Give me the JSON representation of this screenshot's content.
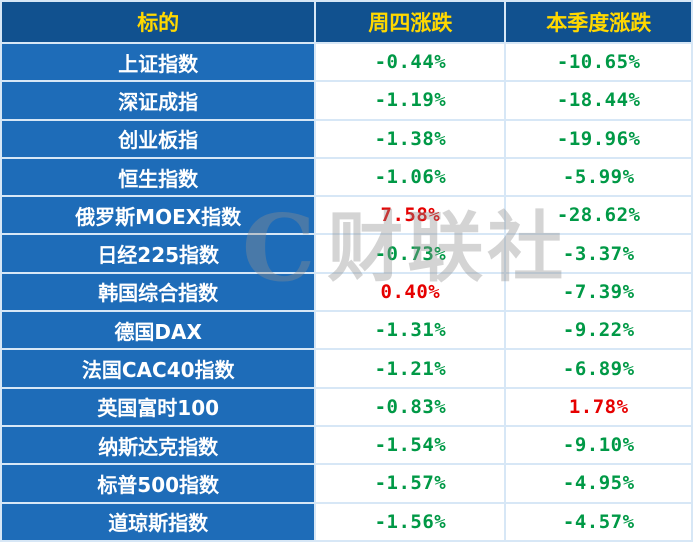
{
  "colors": {
    "header_bg": "#11518F",
    "header_text": "#FFD800",
    "label_bg": "#1E6CB8",
    "label_text": "#FFFFFF",
    "border_outer": "#5E9AD3",
    "border_inner": "#D7E7F6",
    "up": "#E60000",
    "down": "#009946"
  },
  "watermark": {
    "logo": "C",
    "text": "财联社"
  },
  "table": {
    "headers": [
      "标的",
      "周四涨跌",
      "本季度涨跌"
    ],
    "rows": [
      {
        "name": "上证指数",
        "thursday": "-0.44%",
        "thursday_dir": "down",
        "quarter": "-10.65%",
        "quarter_dir": "down"
      },
      {
        "name": "深证成指",
        "thursday": "-1.19%",
        "thursday_dir": "down",
        "quarter": "-18.44%",
        "quarter_dir": "down"
      },
      {
        "name": "创业板指",
        "thursday": "-1.38%",
        "thursday_dir": "down",
        "quarter": "-19.96%",
        "quarter_dir": "down"
      },
      {
        "name": "恒生指数",
        "thursday": "-1.06%",
        "thursday_dir": "down",
        "quarter": "-5.99%",
        "quarter_dir": "down"
      },
      {
        "name": "俄罗斯MOEX指数",
        "thursday": "7.58%",
        "thursday_dir": "up",
        "quarter": "-28.62%",
        "quarter_dir": "down"
      },
      {
        "name": "日经225指数",
        "thursday": "-0.73%",
        "thursday_dir": "down",
        "quarter": "-3.37%",
        "quarter_dir": "down"
      },
      {
        "name": "韩国综合指数",
        "thursday": "0.40%",
        "thursday_dir": "up",
        "quarter": "-7.39%",
        "quarter_dir": "down"
      },
      {
        "name": "德国DAX",
        "thursday": "-1.31%",
        "thursday_dir": "down",
        "quarter": "-9.22%",
        "quarter_dir": "down"
      },
      {
        "name": "法国CAC40指数",
        "thursday": "-1.21%",
        "thursday_dir": "down",
        "quarter": "-6.89%",
        "quarter_dir": "down"
      },
      {
        "name": "英国富时100",
        "thursday": "-0.83%",
        "thursday_dir": "down",
        "quarter": "1.78%",
        "quarter_dir": "up"
      },
      {
        "name": "纳斯达克指数",
        "thursday": "-1.54%",
        "thursday_dir": "down",
        "quarter": "-9.10%",
        "quarter_dir": "down"
      },
      {
        "name": "标普500指数",
        "thursday": "-1.57%",
        "thursday_dir": "down",
        "quarter": "-4.95%",
        "quarter_dir": "down"
      },
      {
        "name": "道琼斯指数",
        "thursday": "-1.56%",
        "thursday_dir": "down",
        "quarter": "-4.57%",
        "quarter_dir": "down"
      }
    ]
  },
  "chart_data": {
    "type": "table",
    "title": "",
    "columns": [
      "标的",
      "周四涨跌(%)",
      "本季度涨跌(%)"
    ],
    "rows": [
      [
        "上证指数",
        -0.44,
        -10.65
      ],
      [
        "深证成指",
        -1.19,
        -18.44
      ],
      [
        "创业板指",
        -1.38,
        -19.96
      ],
      [
        "恒生指数",
        -1.06,
        -5.99
      ],
      [
        "俄罗斯MOEX指数",
        7.58,
        -28.62
      ],
      [
        "日经225指数",
        -0.73,
        -3.37
      ],
      [
        "韩国综合指数",
        0.4,
        -7.39
      ],
      [
        "德国DAX",
        -1.31,
        -9.22
      ],
      [
        "法国CAC40指数",
        -1.21,
        -6.89
      ],
      [
        "英国富时100",
        -0.83,
        1.78
      ],
      [
        "纳斯达克指数",
        -1.54,
        -9.1
      ],
      [
        "标普500指数",
        -1.57,
        -4.95
      ],
      [
        "道琼斯指数",
        -1.56,
        -4.57
      ]
    ]
  }
}
